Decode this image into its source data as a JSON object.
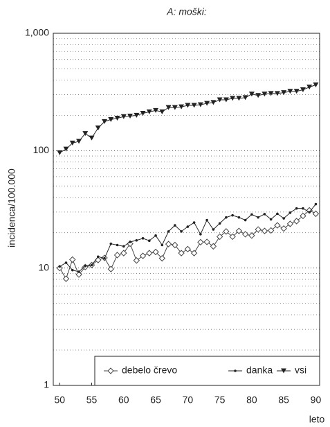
{
  "chart_data": {
    "type": "line",
    "title": "A: moški:",
    "y_label": "incidenca/100.000",
    "x_label": "leto",
    "log_y": true,
    "grid": true,
    "legend": "bottom-right",
    "x": [
      50,
      51,
      52,
      53,
      54,
      55,
      56,
      57,
      58,
      59,
      60,
      61,
      62,
      63,
      64,
      65,
      66,
      67,
      68,
      69,
      70,
      71,
      72,
      73,
      74,
      75,
      76,
      77,
      78,
      79,
      80,
      81,
      82,
      83,
      84,
      85,
      86,
      87,
      88,
      89,
      90
    ],
    "xlim": [
      49,
      90.6
    ],
    "xticks": [
      50,
      55,
      60,
      65,
      70,
      75,
      80,
      85,
      90
    ],
    "ylim": [
      1,
      1000
    ],
    "yticks": [
      1,
      10,
      100,
      {
        "value": 1000,
        "label": "1,000"
      }
    ],
    "series": [
      {
        "name": "debelo črevo",
        "color": "#444",
        "marker": "diamond",
        "values": [
          10,
          8.1,
          11.8,
          8.8,
          10.2,
          10.6,
          11.7,
          12.2,
          9.8,
          12.9,
          13.4,
          16.1,
          11.6,
          12.7,
          13.4,
          13.7,
          12.1,
          16,
          15.7,
          13.4,
          14.5,
          13.4,
          16.6,
          16.7,
          15.3,
          18.5,
          20.5,
          18.5,
          20.7,
          19.4,
          18.9,
          21.3,
          20.7,
          20.9,
          23.1,
          21.7,
          23.8,
          25.1,
          27.8,
          31,
          29
        ]
      },
      {
        "name": "danka",
        "color": "#222",
        "marker": "dot",
        "values": [
          10.3,
          11.1,
          9.6,
          9.3,
          10.4,
          10.6,
          12.5,
          12.1,
          16.1,
          15.7,
          15.3,
          16.7,
          17.2,
          17.9,
          17.1,
          18.9,
          15.7,
          20.5,
          23.1,
          20.5,
          22.5,
          24.4,
          19.4,
          25.6,
          21.3,
          24,
          27,
          28.1,
          27,
          25.6,
          28.6,
          27,
          28.8,
          26,
          29,
          26.5,
          29.6,
          32.2,
          32.2,
          29.9,
          35
        ]
      },
      {
        "name": "vsi",
        "color": "#222",
        "marker": "triangle-down",
        "values": [
          96,
          103,
          116,
          120,
          140,
          128,
          156,
          177,
          184,
          189,
          195,
          197,
          200,
          208,
          214,
          220,
          214,
          233,
          233,
          236,
          243,
          243,
          246,
          253,
          257,
          271,
          271,
          279,
          279,
          283,
          303,
          295,
          303,
          307,
          307,
          312,
          320,
          320,
          330,
          348,
          363
        ]
      }
    ]
  }
}
